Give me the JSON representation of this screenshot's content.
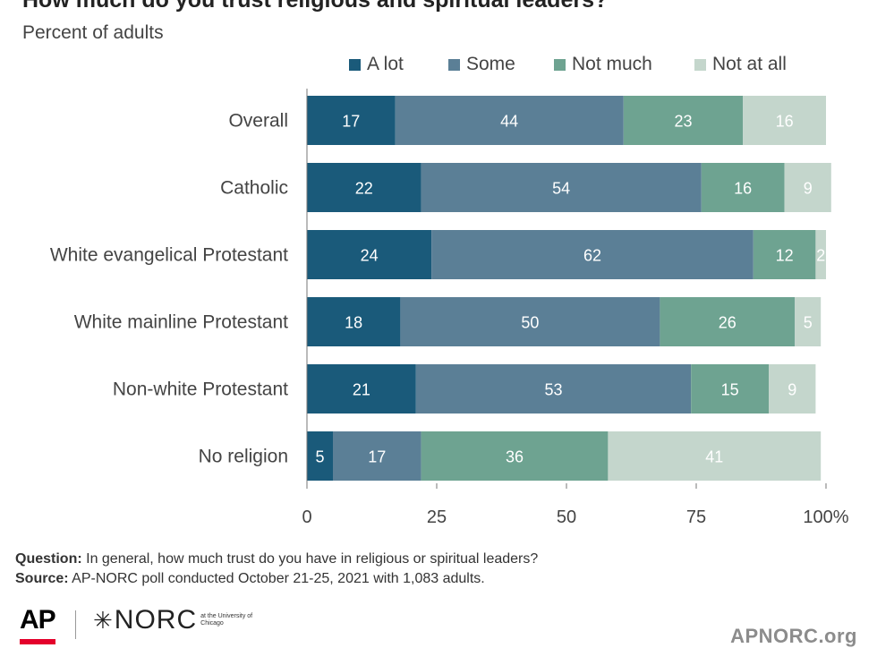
{
  "header": {
    "title": "How much do you trust religious and spiritual leaders?",
    "subtitle": "Percent of adults"
  },
  "chart_data": {
    "type": "bar",
    "orientation": "horizontal",
    "stacked": true,
    "title": "How much do you trust religious and spiritual leaders?",
    "subtitle": "Percent of adults",
    "categories": [
      "Overall",
      "Catholic",
      "White evangelical Protestant",
      "White mainline Protestant",
      "Non-white Protestant",
      "No religion"
    ],
    "series": [
      {
        "name": "A lot",
        "color": "#1a5a7a",
        "label_color": "#ffffff",
        "values": [
          17,
          22,
          24,
          18,
          21,
          5
        ]
      },
      {
        "name": "Some",
        "color": "#5b7f96",
        "label_color": "#ffffff",
        "values": [
          44,
          54,
          62,
          50,
          53,
          17
        ]
      },
      {
        "name": "Not much",
        "color": "#6ea391",
        "label_color": "#ffffff",
        "values": [
          23,
          16,
          12,
          26,
          15,
          36
        ]
      },
      {
        "name": "Not at all",
        "color": "#c4d6cc",
        "label_color": "#ffffff",
        "values": [
          16,
          9,
          2,
          5,
          9,
          41
        ]
      }
    ],
    "x_ticks": [
      "0",
      "25",
      "50",
      "75",
      "100%"
    ],
    "x_tick_values": [
      0,
      25,
      50,
      75,
      100
    ],
    "xlim": [
      0,
      100
    ],
    "xlabel": "",
    "ylabel": "",
    "grid": false,
    "legend_position": "top"
  },
  "footer": {
    "question_label": "Question:",
    "question_text": " In general, how much trust do you have in religious or spiritual leaders?",
    "source_label": "Source:",
    "source_text": " AP-NORC poll conducted October 21-25, 2021 with 1,083 adults."
  },
  "logos": {
    "ap": "AP",
    "norc_symbol": "✳",
    "norc": "NORC",
    "norc_sub": "at the University of Chicago",
    "site": "APNORC.org"
  }
}
